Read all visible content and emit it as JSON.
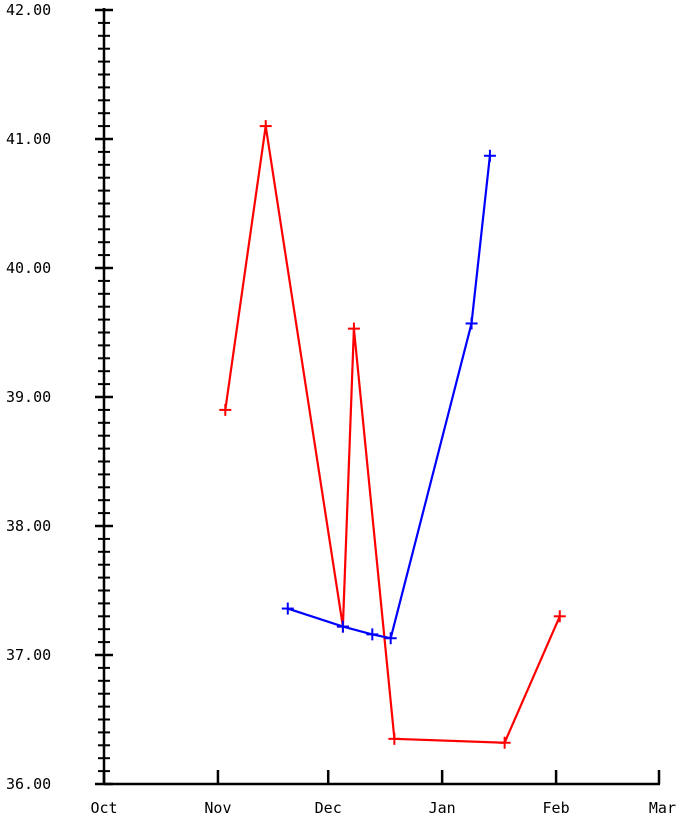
{
  "chart_data": {
    "type": "line",
    "title": "",
    "xlabel": "",
    "ylabel": "",
    "x_ticks": [
      "Oct",
      "Nov",
      "Dec",
      "Jan",
      "Feb",
      "Mar"
    ],
    "y_ticks": [
      "36.00",
      "37.00",
      "38.00",
      "39.00",
      "40.00",
      "41.00",
      "42.00"
    ],
    "ylim": [
      36.0,
      42.0
    ],
    "xlim": [
      "Oct",
      "Mar"
    ],
    "y_minor_per_major": 10,
    "grid": false,
    "series": [
      {
        "color": "#ff0000",
        "marker": "plus",
        "points": [
          {
            "x": "Nov 3",
            "y": 38.9
          },
          {
            "x": "Nov 14",
            "y": 41.1
          },
          {
            "x": "Dec 5",
            "y": 37.22
          },
          {
            "x": "Dec 8",
            "y": 39.53
          },
          {
            "x": "Dec 19",
            "y": 36.35
          },
          {
            "x": "Jan 18",
            "y": 36.32
          },
          {
            "x": "Feb 2",
            "y": 37.3
          }
        ]
      },
      {
        "color": "#0000ff",
        "marker": "plus",
        "points": [
          {
            "x": "Nov 20",
            "y": 37.36
          },
          {
            "x": "Dec 5",
            "y": 37.22
          },
          {
            "x": "Dec 13",
            "y": 37.16
          },
          {
            "x": "Dec 18",
            "y": 37.13
          },
          {
            "x": "Jan 9",
            "y": 39.57
          },
          {
            "x": "Jan 14",
            "y": 40.87
          }
        ]
      }
    ]
  }
}
